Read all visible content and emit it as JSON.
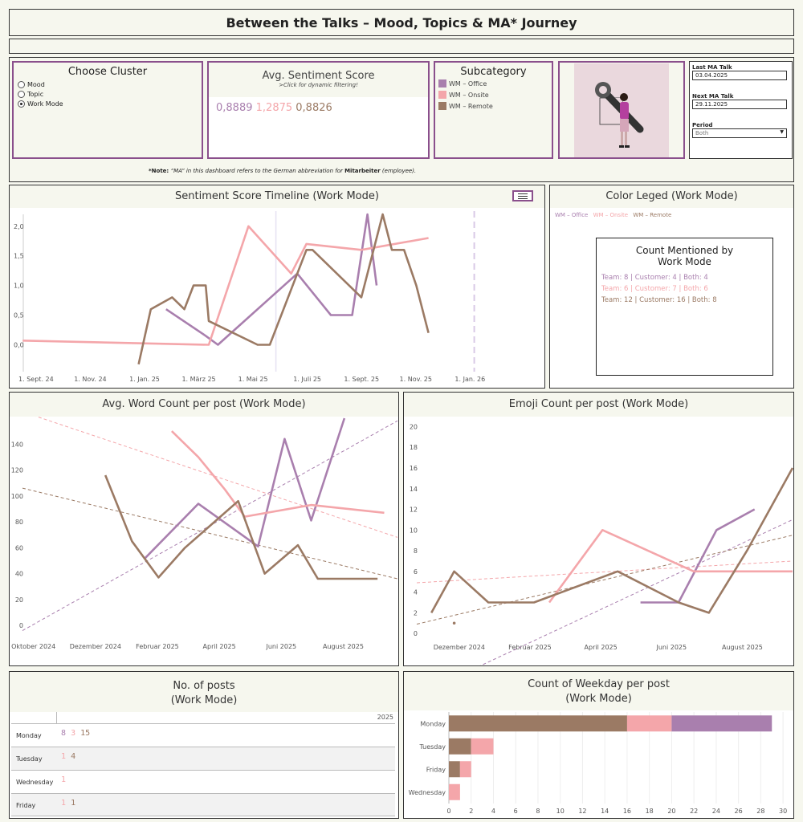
{
  "header": {
    "title": "Between the Talks – Mood, Topics & MA* Journey"
  },
  "colors": {
    "office": "#a97fae",
    "onsite": "#f4a6aa",
    "remote": "#9b7a64",
    "border_purple": "#8a4f8c"
  },
  "cluster": {
    "title": "Choose Cluster",
    "options": [
      "Mood",
      "Topic",
      "Work Mode"
    ],
    "selected": "Work Mode"
  },
  "sentiment": {
    "title": "Avg. Sentiment Score",
    "subtitle": ">Click for dynamic filtering!",
    "values": [
      "0,8889",
      "1,2875",
      "0,8826"
    ]
  },
  "subcategory": {
    "title": "Subcategory",
    "items": [
      "WM – Office",
      "WM – Onsite",
      "WM – Remote"
    ]
  },
  "image": {
    "icon": "wrench-person-illustration"
  },
  "talks": {
    "last_label": "Last MA Talk",
    "last_value": "03.04.2025",
    "next_label": "Next MA Talk",
    "next_value": "29.11.2025",
    "period_label": "Period",
    "period_value": "Both"
  },
  "note": {
    "prefix": "*Note:",
    "text": " “MA” in this dashboard refers to the German abbreviation for ",
    "bold": "Mitarbeiter",
    "suffix": " (employee)."
  },
  "color_legend": {
    "title": "Color Leged (Work Mode)",
    "items": [
      "WM – Office",
      "WM – Onsite",
      "WM – Remote"
    ]
  },
  "count_mentioned": {
    "title_line1": "Count Mentioned by",
    "title_line2": "Work Mode",
    "rows": [
      "Team: 8 | Customer: 4 | Both: 4",
      "Team: 6 | Customer: 7 | Both: 6",
      "Team: 12 | Customer: 16 | Both: 8"
    ]
  },
  "chart_data": [
    {
      "id": "timeline",
      "type": "line",
      "title": "Sentiment Score Timeline (Work Mode)",
      "x_ticks": [
        "1. Sept. 24",
        "1. Nov. 24",
        "1. Jan. 25",
        "1. März 25",
        "1. Mai 25",
        "1. Juli 25",
        "1. Sept. 25",
        "1. Nov. 25",
        "1. Jan. 26"
      ],
      "x_range": [
        0,
        16
      ],
      "ylim": [
        -0.4,
        2.2
      ],
      "y_ticks": [
        0.0,
        0.5,
        1.0,
        1.5,
        2.0
      ],
      "y_tick_labels": [
        "0,0",
        "0,5",
        "1,0",
        "1,5",
        "2,0"
      ],
      "ref_lines_x": [
        8.2,
        14.7
      ],
      "series": [
        {
          "name": "WM – Office",
          "x": [
            4.6,
            5.9,
            6.3,
            8.9,
            10.0,
            10.7,
            11.2,
            11.5
          ],
          "y": [
            0.6,
            0.15,
            0.0,
            1.2,
            0.5,
            0.5,
            2.2,
            1.0
          ]
        },
        {
          "name": "WM – Onsite",
          "x": [
            -0.1,
            6.0,
            7.3,
            8.7,
            9.2,
            11.0,
            13.2
          ],
          "y": [
            0.07,
            0.0,
            2.0,
            1.2,
            1.7,
            1.6,
            1.8
          ]
        },
        {
          "name": "WM – Remote",
          "x": [
            3.7,
            4.1,
            4.8,
            5.2,
            5.5,
            5.9,
            6.0,
            7.6,
            8.0,
            9.2,
            9.4,
            11.0,
            11.7,
            12.0,
            12.4,
            12.8,
            13.2
          ],
          "y": [
            -0.33,
            0.6,
            0.8,
            0.6,
            1.0,
            1.0,
            0.4,
            0.0,
            0.0,
            1.6,
            1.6,
            0.8,
            2.2,
            1.6,
            1.6,
            1.0,
            0.2
          ]
        }
      ]
    },
    {
      "id": "wordcount",
      "type": "line",
      "title": "Avg. Word Count per post (Work Mode)",
      "x_ticks": [
        "Oktober 2024",
        "Dezember 2024",
        "Februar 2025",
        "April 2025",
        "Juni 2025",
        "August 2025"
      ],
      "x_range": [
        0,
        5.6
      ],
      "ylim": [
        -8,
        160
      ],
      "y_ticks": [
        0,
        20,
        40,
        60,
        80,
        100,
        120,
        140
      ],
      "y_tick_labels": [
        "0",
        "20",
        "40",
        "60",
        "80",
        "100",
        "120",
        "140"
      ],
      "series": [
        {
          "name": "WM – Office",
          "x": [
            1.8,
            2.6,
            3.5,
            3.9,
            4.3,
            4.8
          ],
          "y": [
            52,
            94,
            61,
            144,
            81,
            160
          ]
        },
        {
          "name": "WM – Onsite",
          "x": [
            2.2,
            2.6,
            3.0,
            3.3,
            4.3,
            5.4
          ],
          "y": [
            150,
            130,
            105,
            84,
            93,
            87
          ]
        },
        {
          "name": "WM – Remote",
          "x": [
            1.2,
            1.6,
            2.0,
            2.4,
            3.2,
            3.6,
            4.1,
            4.4,
            4.8,
            5.3
          ],
          "y": [
            116,
            65,
            37,
            60,
            96,
            40,
            62,
            36,
            36,
            36
          ]
        }
      ],
      "trends": [
        {
          "name": "WM – Office",
          "y0": -4,
          "y1": 158
        },
        {
          "name": "WM – Onsite",
          "y0": 165,
          "y1": 68
        },
        {
          "name": "WM – Remote",
          "y0": 106,
          "y1": 36
        }
      ]
    },
    {
      "id": "emoji",
      "type": "line",
      "title": "Emoji Count per post (Work Mode)",
      "x_ticks": [
        "Dezember 2024",
        "Februar 2025",
        "April 2025",
        "Juni 2025",
        "August 2025"
      ],
      "x_range": [
        0,
        4.9
      ],
      "ylim": [
        -0.3,
        20.5
      ],
      "y_ticks": [
        0,
        2,
        4,
        6,
        8,
        10,
        12,
        14,
        16,
        18,
        20
      ],
      "y_tick_labels": [
        "0",
        "2",
        "4",
        "6",
        "8",
        "10",
        "12",
        "14",
        "16",
        "18",
        "20"
      ],
      "series": [
        {
          "name": "WM – Office",
          "x": [
            2.9,
            3.4,
            3.9,
            4.4
          ],
          "y": [
            3,
            3,
            10,
            12
          ]
        },
        {
          "name": "WM – Onsite",
          "x": [
            1.7,
            2.4,
            3.0,
            3.6,
            3.9,
            4.9
          ],
          "y": [
            3,
            10,
            8,
            6,
            6,
            6
          ]
        },
        {
          "name": "WM – Remote",
          "x": [
            0.15,
            0.45,
            0.9,
            1.2,
            1.5,
            2.6,
            3.4,
            3.8,
            4.3,
            4.9
          ],
          "y": [
            2,
            6,
            3,
            3,
            3,
            6,
            3,
            2,
            8,
            16
          ]
        },
        {
          "name": "point",
          "x": [
            0.45
          ],
          "y": [
            1
          ]
        }
      ],
      "trends": [
        {
          "name": "WM – Office",
          "y0": -6,
          "y1": 11
        },
        {
          "name": "WM – Onsite",
          "y0": 4.9,
          "y1": 7
        },
        {
          "name": "WM – Remote",
          "y0": 0.9,
          "y1": 9.5
        }
      ]
    },
    {
      "id": "posts",
      "type": "table",
      "title_line1": "No. of posts",
      "title_line2": "(Work Mode)",
      "column": "2025",
      "rows": [
        {
          "day": "Monday",
          "values": [
            "8",
            "3",
            "15"
          ]
        },
        {
          "day": "Tuesday",
          "values": [
            "1",
            "4"
          ]
        },
        {
          "day": "Wednesday",
          "values": [
            "1"
          ]
        },
        {
          "day": "Friday",
          "values": [
            "1",
            "1"
          ]
        }
      ]
    },
    {
      "id": "weekday",
      "type": "bar",
      "title_line1": "Count of Weekday per post",
      "title_line2": "(Work Mode)",
      "categories": [
        "Monday",
        "Tuesday",
        "Friday",
        "Wednesday"
      ],
      "xlim": [
        0,
        31
      ],
      "x_ticks": [
        0,
        2,
        4,
        6,
        8,
        10,
        12,
        14,
        16,
        18,
        20,
        22,
        24,
        26,
        28,
        30
      ],
      "series": [
        {
          "name": "WM – Remote",
          "values": [
            16,
            2,
            1,
            0
          ]
        },
        {
          "name": "WM – Onsite",
          "values": [
            4,
            2,
            1,
            1
          ]
        },
        {
          "name": "WM – Office",
          "values": [
            9,
            0,
            0,
            0
          ]
        }
      ]
    }
  ]
}
